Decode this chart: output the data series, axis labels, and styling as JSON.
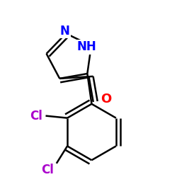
{
  "bg_color": "#ffffff",
  "bond_color": "#000000",
  "bond_width": 1.8,
  "dbo": 0.018,
  "atom_colors": {
    "N": "#0000ff",
    "O": "#ff0000",
    "Cl": "#aa00cc",
    "C": "#000000"
  },
  "fs": 11
}
